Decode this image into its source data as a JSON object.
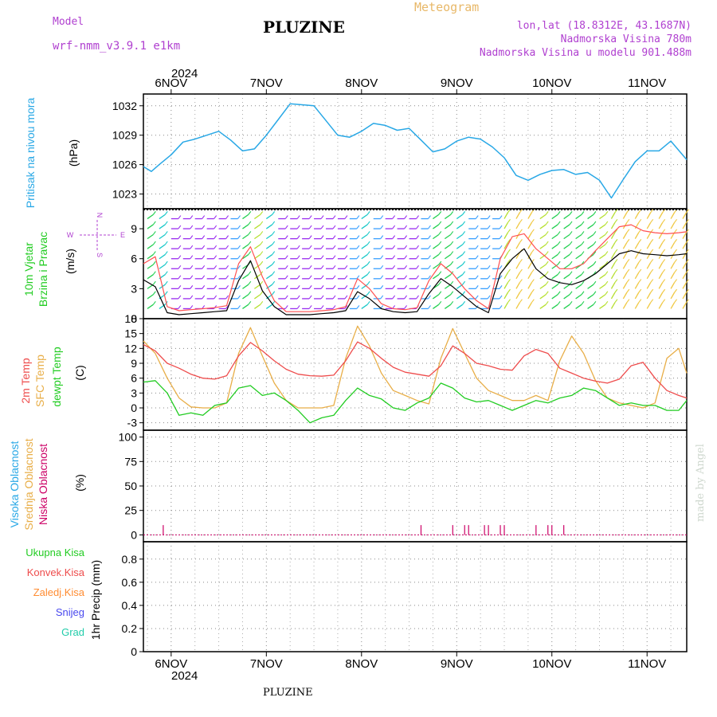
{
  "header": {
    "model_label": "Model",
    "model_name": "wrf-nmm_v3.9.1 e1km",
    "title": "PLUZINE",
    "subtitle": "Meteogram",
    "coords": "lon,lat (18.8312E, 43.1687N)",
    "elevation": "Nadmorska Visina 780m",
    "model_elevation": "Nadmorska Visina u modelu 901.488m"
  },
  "footer": {
    "location": "PLUZINE",
    "credit": "made by Angel"
  },
  "time_axis": {
    "year": "2024",
    "days": [
      "6NOV",
      "7NOV",
      "8NOV",
      "9NOV",
      "10NOV",
      "11NOV"
    ],
    "range_hours": [
      -7,
      130
    ]
  },
  "labels": {
    "pressure": [
      "Pritisak na nivou mora",
      "(hPa)"
    ],
    "wind": [
      "10m Vjetar",
      "Brzina i Pravac",
      "(m/s)"
    ],
    "compass": {
      "n": "N",
      "s": "S",
      "e": "E",
      "w": "W"
    },
    "temp": [
      "2m Temp",
      "SFC Temp",
      "dewpt Temp",
      "(C)"
    ],
    "cloud": [
      "Visoka Oblacnost",
      "Srednja Oblacnost",
      "Niska Oblacnost",
      "(%)"
    ],
    "precip": [
      "Ukupna Kisa",
      "Konvek.Kisa",
      "Zaledj.Kisa",
      "Snijeg",
      "Grad",
      "1hr Precip (mm)"
    ]
  },
  "colors": {
    "pressure": "#29a8e6",
    "temp2m": "#ee4c4c",
    "sfc": "#e8ae48",
    "dewpt": "#22cc22",
    "wind_speed": "#000000",
    "gust": "#ff5050",
    "low_cloud": "#cc0066",
    "header_purple": "#b040d0",
    "meteogram": "#e8b868",
    "precip_total": "#22cc22",
    "precip_conv": "#ee4c4c",
    "precip_frz": "#ff8c32",
    "precip_snow": "#4848ee",
    "precip_hail": "#22ccaa"
  },
  "chart_data": [
    {
      "type": "line",
      "panel": "pressure",
      "ylabel": "(hPa)",
      "yticks": [
        1023,
        1026,
        1029,
        1032
      ],
      "ylim": [
        1021.5,
        1033.2
      ],
      "grid": true,
      "series": [
        {
          "name": "Pritisak na nivou mora",
          "x": [
            -7,
            -5,
            -3,
            0,
            3,
            6,
            9,
            12,
            15,
            18,
            21,
            24,
            27,
            30,
            33,
            36,
            39,
            42,
            45,
            48,
            51,
            54,
            57,
            60,
            63,
            66,
            69,
            72,
            75,
            78,
            81,
            84,
            87,
            90,
            93,
            96,
            99,
            102,
            105,
            108,
            111,
            114,
            117,
            120,
            123,
            126,
            130
          ],
          "y": [
            1025.8,
            1025.3,
            1026.0,
            1027.0,
            1028.3,
            1028.6,
            1029.0,
            1029.4,
            1028.5,
            1027.4,
            1027.6,
            1029.0,
            1030.6,
            1032.2,
            1032.1,
            1032.0,
            1030.5,
            1029.0,
            1028.8,
            1029.4,
            1030.2,
            1030.0,
            1029.5,
            1029.7,
            1028.5,
            1027.3,
            1027.6,
            1028.4,
            1028.8,
            1028.6,
            1027.8,
            1026.7,
            1024.9,
            1024.4,
            1025.0,
            1025.4,
            1025.5,
            1025.0,
            1025.2,
            1024.4,
            1022.6,
            1024.5,
            1026.3,
            1027.4,
            1027.4,
            1028.4,
            1026.5
          ]
        }
      ]
    },
    {
      "type": "line",
      "panel": "wind",
      "ylabel": "(m/s)",
      "yticks": [
        0,
        3,
        6,
        9
      ],
      "ylim": [
        0,
        11
      ],
      "grid": true,
      "series": [
        {
          "name": "speed",
          "x": [
            -7,
            -4,
            -1,
            2,
            5,
            8,
            11,
            14,
            17,
            20,
            23,
            26,
            29,
            32,
            35,
            38,
            41,
            44,
            47,
            50,
            53,
            56,
            59,
            62,
            65,
            68,
            71,
            74,
            77,
            80,
            83,
            86,
            89,
            92,
            95,
            98,
            101,
            104,
            107,
            110,
            113,
            116,
            119,
            122,
            125,
            128,
            130
          ],
          "y": [
            3.9,
            3.2,
            0.6,
            0.4,
            0.5,
            0.6,
            0.7,
            0.8,
            3.8,
            5.8,
            2.8,
            1.2,
            0.4,
            0.4,
            0.4,
            0.5,
            0.6,
            0.8,
            2.7,
            2.0,
            1.0,
            0.7,
            0.6,
            0.7,
            2.5,
            4.0,
            3.2,
            2.2,
            1.2,
            0.6,
            4.5,
            6.0,
            7.0,
            5.0,
            4.0,
            3.6,
            3.4,
            3.8,
            4.5,
            5.5,
            6.5,
            6.8,
            6.5,
            6.4,
            6.3,
            6.4,
            6.5
          ]
        },
        {
          "name": "gust",
          "x": [
            -7,
            -4,
            -1,
            2,
            5,
            8,
            11,
            14,
            17,
            20,
            23,
            26,
            29,
            32,
            35,
            38,
            41,
            44,
            47,
            50,
            53,
            56,
            59,
            62,
            65,
            68,
            71,
            74,
            77,
            80,
            83,
            86,
            89,
            92,
            95,
            98,
            101,
            104,
            107,
            110,
            113,
            116,
            119,
            122,
            125,
            128,
            130
          ],
          "y": [
            5.5,
            6.2,
            1.2,
            0.8,
            0.9,
            1.0,
            1.1,
            1.3,
            5.5,
            7.2,
            4.2,
            1.8,
            0.7,
            0.7,
            0.7,
            0.8,
            0.9,
            1.2,
            4.0,
            3.0,
            1.5,
            1.0,
            0.9,
            1.1,
            3.8,
            5.5,
            4.5,
            3.0,
            1.8,
            1.0,
            6.0,
            8.2,
            8.5,
            7.0,
            6.0,
            5.0,
            5.0,
            5.5,
            6.8,
            8.0,
            9.2,
            9.4,
            8.8,
            8.6,
            8.5,
            8.6,
            8.7
          ]
        }
      ],
      "barbs": {
        "x_step": 3,
        "levels": [
          1,
          2,
          3,
          4,
          5,
          6,
          7,
          8,
          9,
          10
        ]
      }
    },
    {
      "type": "line",
      "panel": "temperature",
      "ylabel": "(C)",
      "yticks": [
        -3,
        0,
        3,
        6,
        9,
        12,
        15,
        18
      ],
      "ylim": [
        -4.5,
        18
      ],
      "grid": true,
      "series": [
        {
          "name": "2m Temp",
          "x": [
            -7,
            -4,
            -1,
            2,
            5,
            8,
            11,
            14,
            17,
            20,
            23,
            26,
            29,
            32,
            35,
            38,
            41,
            44,
            47,
            50,
            53,
            56,
            59,
            62,
            65,
            68,
            71,
            74,
            77,
            80,
            83,
            86,
            89,
            92,
            95,
            98,
            101,
            104,
            107,
            110,
            113,
            116,
            119,
            122,
            125,
            128,
            130
          ],
          "y": [
            12.8,
            11.5,
            9.0,
            8.0,
            6.8,
            6.0,
            5.8,
            6.5,
            10.5,
            13.2,
            11.5,
            9.5,
            7.8,
            6.8,
            6.5,
            6.4,
            6.6,
            9.5,
            13.3,
            12.0,
            10.0,
            8.2,
            7.2,
            6.8,
            6.4,
            8.5,
            12.5,
            11.0,
            9.0,
            8.5,
            7.8,
            7.6,
            10.5,
            11.8,
            11.0,
            8.0,
            7.0,
            6.0,
            5.4,
            5.0,
            5.8,
            8.5,
            9.2,
            6.0,
            3.5,
            2.5,
            2.0
          ]
        },
        {
          "name": "SFC Temp",
          "x": [
            -7,
            -4,
            -1,
            2,
            5,
            8,
            11,
            14,
            17,
            20,
            23,
            26,
            29,
            32,
            35,
            38,
            41,
            44,
            47,
            50,
            53,
            56,
            59,
            62,
            65,
            68,
            71,
            74,
            77,
            80,
            83,
            86,
            89,
            92,
            95,
            98,
            101,
            104,
            107,
            110,
            113,
            116,
            119,
            122,
            125,
            128,
            130
          ],
          "y": [
            13.5,
            11.0,
            6.0,
            2.0,
            0.2,
            0.0,
            0.0,
            1.0,
            11.0,
            16.2,
            10.5,
            5.0,
            1.5,
            0.0,
            0.0,
            0.0,
            0.5,
            10.0,
            16.5,
            12.5,
            7.0,
            3.5,
            2.5,
            1.5,
            0.8,
            10.0,
            16.0,
            11.0,
            6.0,
            3.5,
            2.5,
            1.5,
            1.5,
            2.5,
            1.5,
            9.5,
            14.5,
            11.0,
            5.5,
            2.0,
            1.0,
            0.5,
            0.0,
            1.0,
            10.0,
            12.0,
            7.0
          ]
        },
        {
          "name": "dewpt Temp",
          "x": [
            -7,
            -4,
            -1,
            2,
            5,
            8,
            11,
            14,
            17,
            20,
            23,
            26,
            29,
            32,
            35,
            38,
            41,
            44,
            47,
            50,
            53,
            56,
            59,
            62,
            65,
            68,
            71,
            74,
            77,
            80,
            83,
            86,
            89,
            92,
            95,
            98,
            101,
            104,
            107,
            110,
            113,
            116,
            119,
            122,
            125,
            128,
            130
          ],
          "y": [
            5.2,
            5.5,
            3.0,
            -1.5,
            -1.0,
            -1.5,
            0.5,
            1.0,
            4.0,
            4.5,
            2.5,
            3.0,
            1.5,
            -0.5,
            -3.0,
            -2.0,
            -1.5,
            1.5,
            4.0,
            2.5,
            1.8,
            0.0,
            -0.5,
            1.0,
            2.0,
            5.0,
            4.0,
            2.0,
            1.2,
            1.5,
            0.5,
            -0.5,
            0.5,
            1.5,
            1.0,
            2.0,
            2.5,
            4.0,
            3.5,
            2.0,
            0.5,
            1.0,
            0.5,
            0.5,
            -0.5,
            -0.5,
            1.5
          ]
        }
      ]
    },
    {
      "type": "bar",
      "panel": "cloud",
      "ylabel": "(%)",
      "yticks": [
        0,
        25,
        50,
        75,
        100
      ],
      "ylim": [
        -7,
        107
      ],
      "grid": true,
      "series": [
        {
          "name": "Niska Oblacnost",
          "x": [
            -2,
            63,
            71,
            74,
            75,
            79,
            80,
            83,
            84,
            92,
            95,
            96,
            99
          ],
          "y": [
            10,
            10,
            10,
            10,
            10,
            10,
            10,
            10,
            10,
            10,
            10,
            10,
            10
          ]
        }
      ]
    },
    {
      "type": "bar",
      "panel": "precipitation",
      "ylabel": "1hr Precip (mm)",
      "yticks": [
        0,
        0.2,
        0.4,
        0.6,
        0.8
      ],
      "ylim": [
        0,
        0.95
      ],
      "grid": true,
      "series": []
    }
  ]
}
